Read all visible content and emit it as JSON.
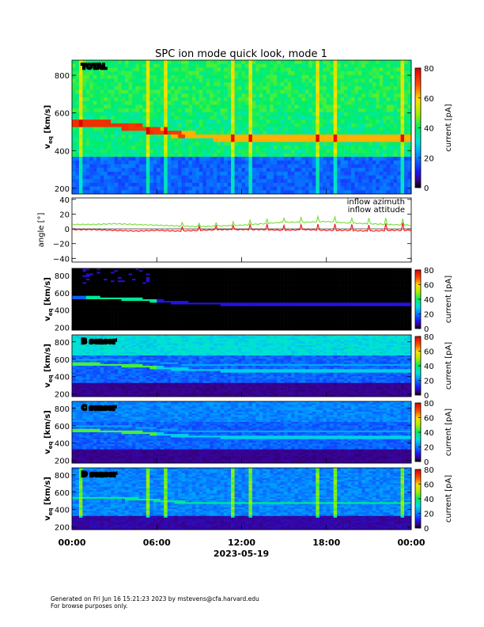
{
  "title": "SPC ion mode quick look, mode 1",
  "date_label": "2023-05-19",
  "x_ticks": [
    "00:00",
    "06:00",
    "12:00",
    "18:00",
    "00:00"
  ],
  "footer": {
    "line1": "Generated on Fri Jun 16 15:21:23 2023 by mstevens@cfa.harvard.edu",
    "line2": "For browse purposes only."
  },
  "colorbar_label": "current [pA]",
  "colorbar_ticks_main": [
    "0",
    "20",
    "40",
    "60",
    "80"
  ],
  "colorbar_ticks_small": [
    "0",
    "20",
    "40",
    "60",
    "80"
  ],
  "veq_label": "v",
  "veq_sub": "eq",
  "veq_unit": " [km/s]",
  "angle_label": "angle [°]",
  "chart_data": [
    {
      "type": "heatmap",
      "panel": "total",
      "label": "TOTAL",
      "ylabel": "veq [km/s]",
      "yticks": [
        "200",
        "400",
        "600",
        "800"
      ],
      "ylim": [
        170,
        880
      ],
      "xlim": [
        "00:00",
        "00:00"
      ],
      "zlabel": "current [pA]",
      "zlim": [
        0,
        80
      ],
      "beam_speed_kms": [
        540,
        540,
        535,
        520,
        500,
        480,
        475,
        470,
        470,
        470,
        470,
        470,
        470,
        470,
        470,
        470
      ]
    },
    {
      "type": "line",
      "panel": "angle",
      "ylabel": "angle [°]",
      "yticks": [
        "40",
        "20",
        "0",
        "−20",
        "−40"
      ],
      "ylim": [
        -45,
        42
      ],
      "x_hours": [
        0,
        1.5,
        3,
        4.5,
        6,
        7.5,
        9,
        10.5,
        12,
        13.5,
        15,
        16.5,
        18,
        19.5,
        21,
        22.5,
        24
      ],
      "series": [
        {
          "name": "inflow azimuth",
          "color": "#ee1111",
          "values": [
            -1,
            -1,
            -2,
            -3,
            -2,
            -3,
            -2,
            -1,
            -1,
            -1,
            -2,
            -1,
            -2,
            -2,
            -3,
            -2,
            -2
          ]
        },
        {
          "name": "inflow attitude",
          "color": "#77dd33",
          "values": [
            6,
            6,
            7,
            6,
            5,
            4,
            3,
            4,
            5,
            7,
            9,
            9,
            10,
            8,
            7,
            6,
            5
          ]
        }
      ]
    },
    {
      "type": "heatmap",
      "panel": "A",
      "label": "",
      "ylabel": "veq [km/s]",
      "yticks": [
        "200",
        "400",
        "600",
        "800"
      ],
      "ylim": [
        170,
        880
      ],
      "zlabel": "current [pA]",
      "zlim": [
        0,
        80
      ]
    },
    {
      "type": "heatmap",
      "panel": "B",
      "label": "B sensor",
      "ylabel": "veq [km/s]",
      "yticks": [
        "200",
        "400",
        "600",
        "800"
      ],
      "ylim": [
        170,
        880
      ],
      "zlabel": "current [pA]",
      "zlim": [
        0,
        80
      ]
    },
    {
      "type": "heatmap",
      "panel": "C",
      "label": "C sensor",
      "ylabel": "veq [km/s]",
      "yticks": [
        "200",
        "400",
        "600",
        "800"
      ],
      "ylim": [
        170,
        880
      ],
      "zlabel": "current [pA]",
      "zlim": [
        0,
        80
      ]
    },
    {
      "type": "heatmap",
      "panel": "D",
      "label": "D sensor",
      "ylabel": "veq [km/s]",
      "yticks": [
        "200",
        "400",
        "600",
        "800"
      ],
      "ylim": [
        170,
        880
      ],
      "zlabel": "current [pA]",
      "zlim": [
        0,
        80
      ]
    }
  ]
}
